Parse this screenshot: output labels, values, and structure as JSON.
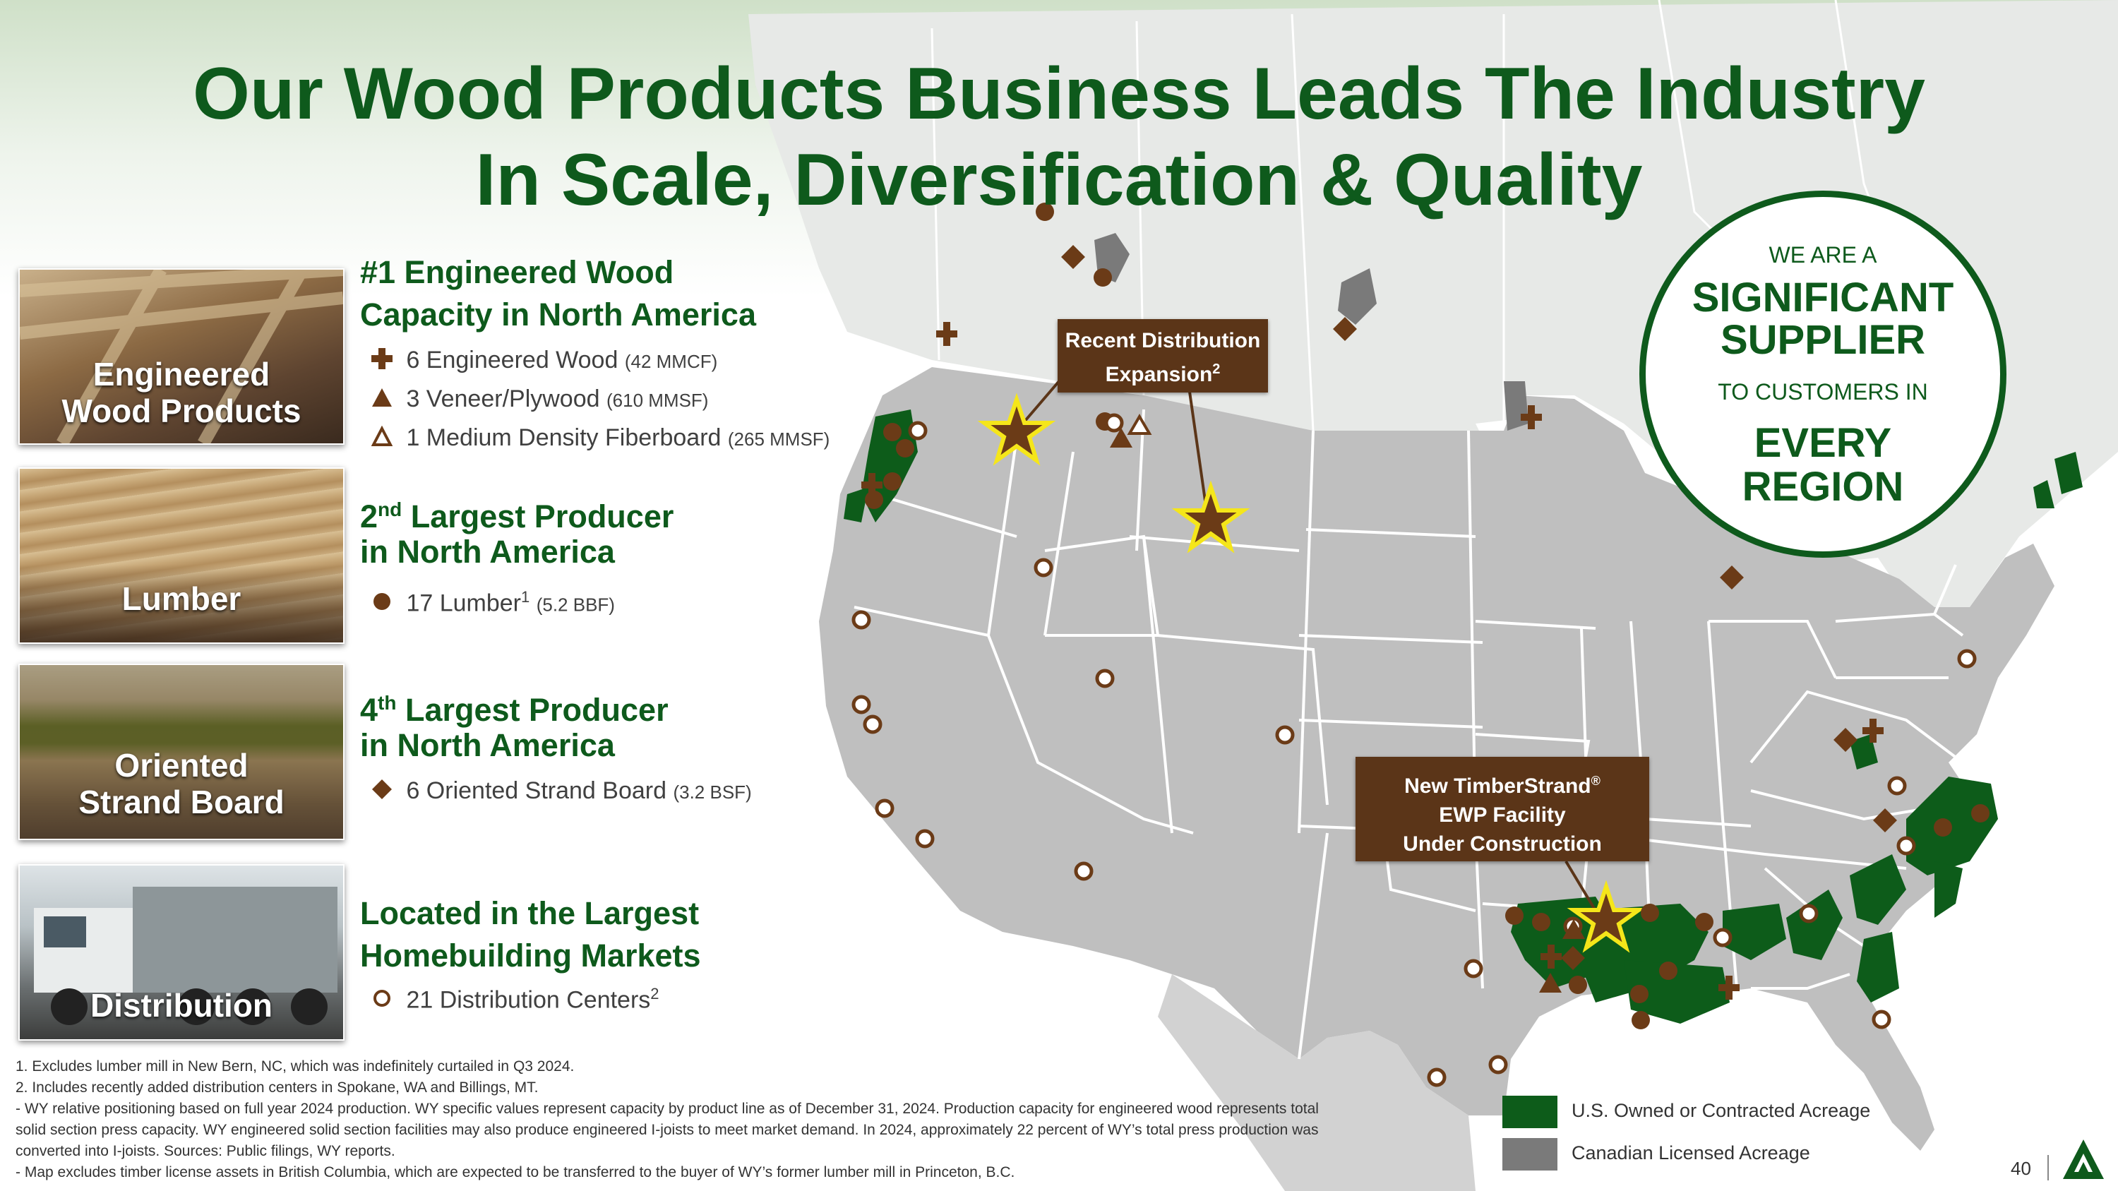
{
  "title": {
    "line1": "Our Wood Products Business Leads The Industry",
    "line2": "In Scale, Diversification & Quality"
  },
  "categories": [
    {
      "label_line1": "Engineered",
      "label_line2": "Wood Products"
    },
    {
      "label_line1": "Lumber",
      "label_line2": ""
    },
    {
      "label_line1": "Oriented",
      "label_line2": "Strand Board"
    },
    {
      "label_line1": "Distribution",
      "label_line2": ""
    }
  ],
  "sections": {
    "engineered": {
      "heading_line1": "#1 Engineered Wood",
      "heading_line2": "Capacity in North America",
      "items": [
        {
          "text": "6 Engineered Wood",
          "detail": "(42 MMCF)",
          "icon": "plus-icon"
        },
        {
          "text": "3 Veneer/Plywood",
          "detail": "(610 MMSF)",
          "icon": "triangle-filled-icon"
        },
        {
          "text": "1 Medium Density Fiberboard",
          "detail": "(265 MMSF)",
          "icon": "triangle-outline-icon"
        }
      ]
    },
    "lumber": {
      "heading_pre": "2",
      "heading_sup": "nd",
      "heading_post": " Largest Producer",
      "heading_line2": "in North America",
      "item": {
        "text": "17 Lumber",
        "sup": "1",
        "detail": "(5.2 BBF)",
        "icon": "circle-filled-icon"
      }
    },
    "osb": {
      "heading_pre": "4",
      "heading_sup": "th",
      "heading_post": " Largest Producer",
      "heading_line2": "in North America",
      "item": {
        "text": "6 Oriented Strand Board",
        "detail": "(3.2 BSF)",
        "icon": "diamond-icon"
      }
    },
    "distribution": {
      "heading_line1": "Located in the Largest",
      "heading_line2": "Homebuilding Markets",
      "item": {
        "text": "21 Distribution Centers",
        "sup": "2",
        "icon": "circle-outline-icon"
      }
    }
  },
  "callouts": {
    "distribution_expansion": {
      "line1": "Recent Distribution",
      "line2": "Expansion",
      "sup": "2"
    },
    "timberstrand": {
      "line1": "New TimberStrand",
      "sup": "®",
      "line2": "EWP Facility",
      "line3": "Under Construction"
    }
  },
  "supplier_circle": {
    "line1": "WE ARE A",
    "line2": "SIGNIFICANT",
    "line3": "SUPPLIER",
    "line4": "TO CUSTOMERS IN",
    "line5": "EVERY",
    "line6": "REGION"
  },
  "footnotes": [
    "1. Excludes lumber mill in New Bern, NC, which was indefinitely curtailed in Q3 2024.",
    "2. Includes recently added distribution centers in Spokane, WA and Billings, MT.",
    "- WY relative positioning based on full year 2024 production. WY specific values represent capacity by product line as of December 31, 2024. Production capacity for engineered wood represents total solid section press capacity. WY engineered solid section facilities may also produce engineered I-joists to meet market demand. In 2024, approximately 22 percent of WY’s total press production was converted into I-joists. Sources: Public filings, WY reports.",
    "- Map excludes timber license assets in British Columbia, which are expected to be transferred to the buyer of WY’s former lumber mill in Princeton, B.C."
  ],
  "legend": [
    {
      "label": "U.S. Owned or Contracted Acreage",
      "color": "#0d5c1a"
    },
    {
      "label": "Canadian Licensed Acreage",
      "color": "#7a7a7a"
    }
  ],
  "page_number": "40",
  "colors": {
    "brand_green": "#0e5a1c",
    "marker_brown": "#6b3b17",
    "star_gold": "#f5e61a",
    "callout_brown": "#5b3518"
  },
  "map_markers": {
    "lumber_mills": 17,
    "distribution_centers": 21,
    "osb_mills": 6,
    "engineered_wood": 6,
    "veneer_plywood": 3,
    "mdf": 1,
    "stars": 3
  }
}
